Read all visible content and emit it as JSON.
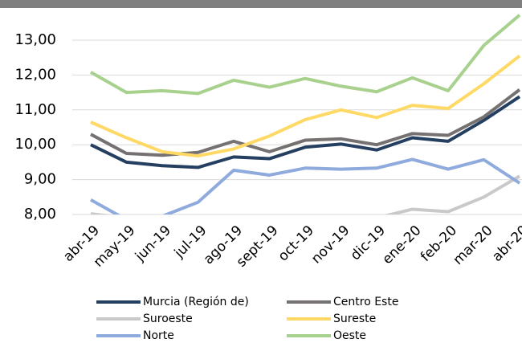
{
  "chart_data": {
    "type": "line",
    "categories": [
      "abr-19",
      "may-19",
      "jun-19",
      "jul-19",
      "ago-19",
      "sept-19",
      "oct-19",
      "nov-19",
      "dic-19",
      "ene-20",
      "feb-20",
      "mar-20",
      "abr-20"
    ],
    "series": [
      {
        "name": "Murcia (Región de)",
        "color": "#243f60",
        "values": [
          10.0,
          9.5,
          9.4,
          9.35,
          9.65,
          9.6,
          9.93,
          10.02,
          9.85,
          10.2,
          10.1,
          10.7,
          11.38
        ]
      },
      {
        "name": "Centro Este",
        "color": "#767171",
        "values": [
          10.3,
          9.75,
          9.7,
          9.78,
          10.1,
          9.8,
          10.13,
          10.17,
          10.0,
          10.32,
          10.27,
          10.8,
          11.58
        ]
      },
      {
        "name": "Suroeste",
        "color": "#c9c9c9",
        "values": [
          8.02,
          7.9,
          7.8,
          7.7,
          7.7,
          7.7,
          7.7,
          7.95,
          7.9,
          8.15,
          8.08,
          8.5,
          9.1
        ]
      },
      {
        "name": "Sureste",
        "color": "#ffd966",
        "values": [
          10.65,
          10.2,
          9.8,
          9.68,
          9.88,
          10.25,
          10.72,
          11.0,
          10.78,
          11.13,
          11.04,
          11.75,
          12.55
        ]
      },
      {
        "name": "Norte",
        "color": "#8faadc",
        "values": [
          8.42,
          7.85,
          7.95,
          8.35,
          9.27,
          9.13,
          9.33,
          9.3,
          9.33,
          9.58,
          9.3,
          9.57,
          8.9
        ]
      },
      {
        "name": "Oeste",
        "color": "#a9d18e",
        "values": [
          12.08,
          11.5,
          11.55,
          11.47,
          11.85,
          11.65,
          11.9,
          11.68,
          11.52,
          11.92,
          11.55,
          12.85,
          13.72
        ]
      }
    ],
    "ylim": [
      8,
      14
    ],
    "yticks": [
      {
        "value": 8,
        "label": "8,00"
      },
      {
        "value": 9,
        "label": "9,00"
      },
      {
        "value": 10,
        "label": "10,00"
      },
      {
        "value": 11,
        "label": "11,00"
      },
      {
        "value": 12,
        "label": "12,00"
      },
      {
        "value": 13,
        "label": "13,00"
      }
    ],
    "grid": true
  }
}
